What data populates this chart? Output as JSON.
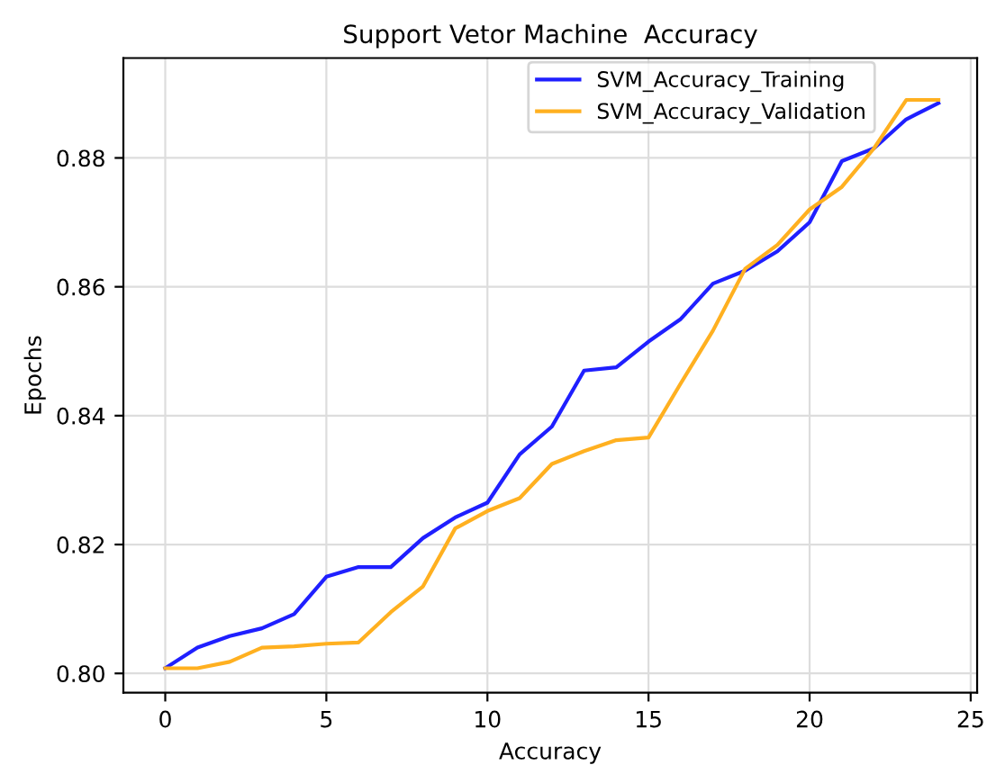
{
  "chart_data": {
    "type": "line",
    "title": "Support Vetor Machine  Accuracy",
    "xlabel": "Accuracy",
    "ylabel": "Epochs",
    "x": [
      0,
      1,
      2,
      3,
      4,
      5,
      6,
      7,
      8,
      9,
      10,
      11,
      12,
      13,
      14,
      15,
      16,
      17,
      18,
      19,
      20,
      21,
      22,
      23,
      24
    ],
    "series": [
      {
        "name": "SVM_Accuracy_Training",
        "color": "#1f1fff",
        "values": [
          0.8008,
          0.804,
          0.8058,
          0.807,
          0.8092,
          0.815,
          0.8165,
          0.8165,
          0.821,
          0.8242,
          0.8265,
          0.834,
          0.8383,
          0.847,
          0.8475,
          0.8515,
          0.855,
          0.8605,
          0.8625,
          0.8655,
          0.87,
          0.8795,
          0.8815,
          0.886,
          0.8885
        ]
      },
      {
        "name": "SVM_Accuracy_Validation",
        "color": "#ffb020",
        "values": [
          0.8008,
          0.8008,
          0.8018,
          0.804,
          0.8042,
          0.8046,
          0.8048,
          0.8095,
          0.8135,
          0.8225,
          0.8252,
          0.8272,
          0.8325,
          0.8345,
          0.8362,
          0.8366,
          0.845,
          0.8532,
          0.8628,
          0.8665,
          0.872,
          0.8755,
          0.8815,
          0.889,
          0.889
        ]
      }
    ],
    "xlim": [
      -1.3,
      25.2
    ],
    "xticks": [
      0,
      5,
      10,
      15,
      20,
      25
    ],
    "ylim": [
      0.797,
      0.8955
    ],
    "yticks": [
      {
        "value": 0.8,
        "label": "0.80"
      },
      {
        "value": 0.82,
        "label": "0.82"
      },
      {
        "value": 0.84,
        "label": "0.84"
      },
      {
        "value": 0.86,
        "label": "0.86"
      },
      {
        "value": 0.88,
        "label": "0.88"
      }
    ],
    "grid": true,
    "legend": "upper right"
  }
}
